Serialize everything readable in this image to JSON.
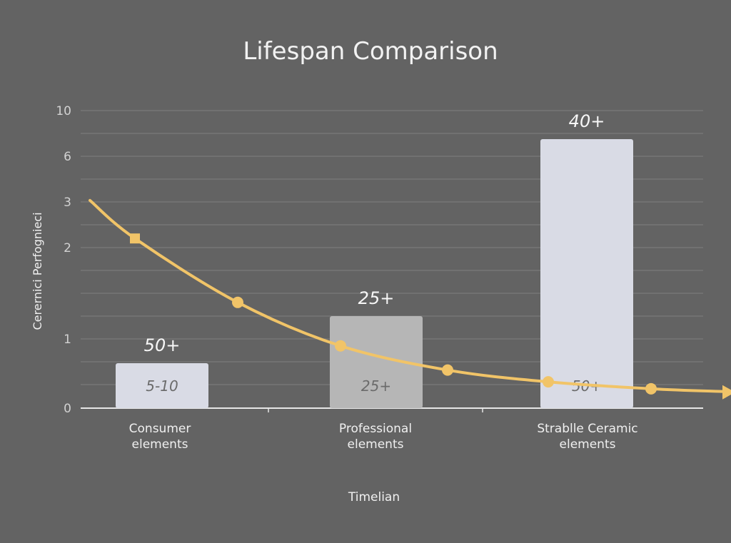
{
  "chart_data": {
    "type": "bar",
    "title": "Lifespan Comparison",
    "ylabel": "Cerernici Perfognieci",
    "xlabel": "Timelian",
    "y_ticks": [
      "0",
      "1",
      "2",
      "3",
      "6",
      "10"
    ],
    "grid": true,
    "categories": [
      [
        "Consumer",
        "elements"
      ],
      [
        "Professional",
        "elements"
      ],
      [
        "Strablle Ceramic",
        "elements"
      ]
    ],
    "values": [
      0.65,
      1.25,
      7.5
    ],
    "bar_colors": [
      "#d9dbe5",
      "#b6b6b6",
      "#d9dbe5"
    ],
    "top_labels": [
      "50+",
      "25+",
      "40+"
    ],
    "inner_labels": [
      "5-10",
      "25+",
      "50+"
    ],
    "trend_line": {
      "color": "#f1c468",
      "points": [
        [
          0.17,
          3.1
        ],
        [
          0.38,
          2.2
        ],
        [
          0.86,
          1.4
        ],
        [
          1.34,
          0.9
        ],
        [
          1.84,
          0.55
        ],
        [
          2.31,
          0.38
        ],
        [
          2.79,
          0.28
        ]
      ],
      "end": [
        3.13,
        0.24
      ]
    }
  }
}
